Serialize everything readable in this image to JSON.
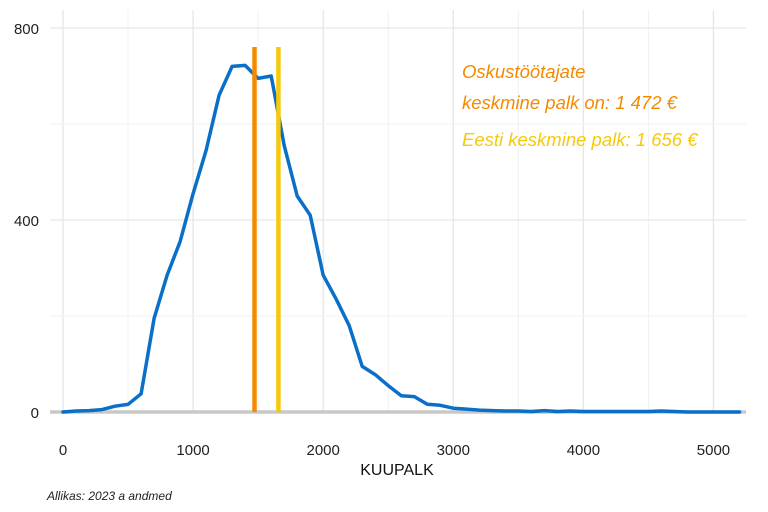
{
  "chart_data": {
    "type": "line",
    "xlabel": "KUUPALK",
    "ylabel": "",
    "xlim": [
      -100,
      5250
    ],
    "ylim": [
      0,
      800
    ],
    "x_ticks": [
      0,
      1000,
      2000,
      3000,
      4000,
      5000
    ],
    "y_ticks": [
      0,
      400,
      800
    ],
    "grid": true,
    "series": [
      {
        "color": "#0a6fc8",
        "x": [
          0,
          100,
          200,
          300,
          400,
          500,
          600,
          700,
          800,
          900,
          1000,
          1100,
          1200,
          1300,
          1400,
          1500,
          1600,
          1700,
          1800,
          1900,
          2000,
          2100,
          2200,
          2300,
          2400,
          2500,
          2600,
          2700,
          2800,
          2900,
          3000,
          3100,
          3200,
          3300,
          3400,
          3500,
          3600,
          3700,
          3800,
          3900,
          4000,
          4100,
          4200,
          4300,
          4400,
          4500,
          4600,
          4700,
          4800,
          4900,
          5000,
          5100,
          5200
        ],
        "y": [
          0,
          2,
          3,
          5,
          12,
          16,
          38,
          195,
          285,
          355,
          455,
          545,
          660,
          720,
          722,
          695,
          700,
          555,
          450,
          410,
          285,
          235,
          180,
          95,
          78,
          55,
          34,
          32,
          16,
          14,
          8,
          6,
          4,
          3,
          2,
          2,
          1,
          3,
          1,
          2,
          1,
          1,
          1,
          1,
          1,
          1,
          2,
          1,
          0,
          0,
          0,
          0,
          0
        ]
      }
    ],
    "vlines": [
      {
        "x": 1472,
        "color": "#f58a00"
      },
      {
        "x": 1656,
        "color": "#f7c90b"
      }
    ],
    "annotations": [
      {
        "lines": [
          "Oskustöötajate",
          " keskmine palk on: 1 472 €"
        ],
        "color": "#f58a00"
      },
      {
        "lines": [
          "Eesti keskmine palk: 1 656 €"
        ],
        "color": "#f7c90b"
      }
    ],
    "source": "Allikas: 2023 a andmed"
  }
}
